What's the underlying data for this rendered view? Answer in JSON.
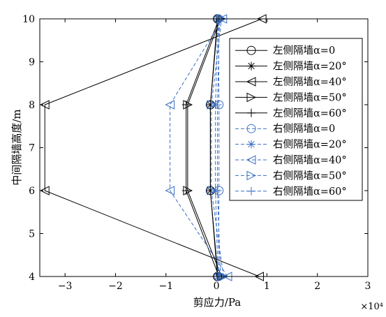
{
  "chart_data": {
    "type": "line",
    "xlabel": "剪应力/Pa",
    "ylabel": "中间隔墙高度/m",
    "x_scale_note": "×10⁴",
    "xlim": [
      -3.5,
      3
    ],
    "ylim": [
      4,
      10
    ],
    "x_ticks": [
      -3,
      -2,
      -1,
      0,
      1,
      2,
      3
    ],
    "y_ticks": [
      4,
      5,
      6,
      7,
      8,
      9,
      10
    ],
    "x_tick_labels": [
      "−3",
      "−2",
      "−1",
      "0",
      "1",
      "2",
      "3"
    ],
    "y_tick_labels": [
      "4",
      "5",
      "6",
      "7",
      "8",
      "9",
      "10"
    ],
    "grid": false,
    "legend_position": "top-right",
    "y": [
      4,
      6,
      8,
      10
    ],
    "series": [
      {
        "name": "左侧隔墙α=0",
        "values": [
          0.02,
          -0.12,
          -0.12,
          0.02
        ],
        "color": "#000000",
        "dash": "solid",
        "marker": "circle"
      },
      {
        "name": "左侧隔墙α=20°",
        "values": [
          0.03,
          -0.12,
          -0.12,
          0.03
        ],
        "color": "#000000",
        "dash": "solid",
        "marker": "star"
      },
      {
        "name": "左侧隔墙α=40°",
        "values": [
          0.85,
          -3.4,
          -3.4,
          0.9
        ],
        "color": "#000000",
        "dash": "solid",
        "marker": "triangle-left"
      },
      {
        "name": "左侧隔墙α=50°",
        "values": [
          0.1,
          -0.57,
          -0.57,
          0.08
        ],
        "color": "#000000",
        "dash": "solid",
        "marker": "triangle-right"
      },
      {
        "name": "左侧隔墙α=60°",
        "values": [
          0.05,
          -0.6,
          -0.6,
          0.05
        ],
        "color": "#000000",
        "dash": "solid",
        "marker": "plus"
      },
      {
        "name": "右侧隔墙α=0",
        "values": [
          0.04,
          0.05,
          0.05,
          0.04
        ],
        "color": "#3a6fc4",
        "dash": "dashed",
        "marker": "circle"
      },
      {
        "name": "右侧隔墙α=20°",
        "values": [
          0.03,
          -0.02,
          -0.02,
          0.03
        ],
        "color": "#3a6fc4",
        "dash": "dashed",
        "marker": "star"
      },
      {
        "name": "右侧隔墙α=40°",
        "values": [
          0.22,
          -0.92,
          -0.92,
          0.12
        ],
        "color": "#3a6fc4",
        "dash": "dashed",
        "marker": "triangle-left"
      },
      {
        "name": "右侧隔墙α=50°",
        "values": [
          0.14,
          -0.1,
          -0.1,
          0.1
        ],
        "color": "#3a6fc4",
        "dash": "dashed",
        "marker": "triangle-right"
      },
      {
        "name": "右侧隔墙α=60°",
        "values": [
          0.08,
          0.02,
          0.02,
          0.06
        ],
        "color": "#3a6fc4",
        "dash": "dashed",
        "marker": "plus"
      }
    ]
  }
}
